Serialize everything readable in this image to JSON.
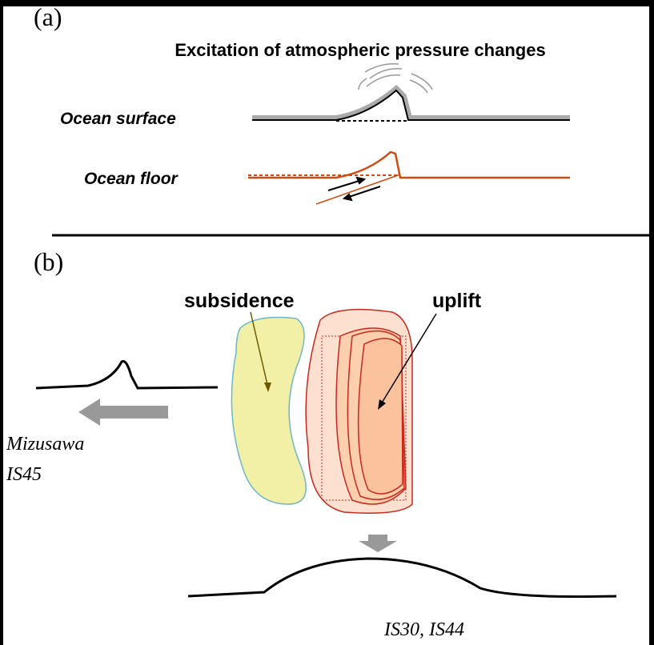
{
  "panel_a": {
    "label": "(a)",
    "title": "Excitation of atmospheric pressure changes",
    "surface_label": "Ocean surface",
    "floor_label": "Ocean floor"
  },
  "panel_b": {
    "label": "(b)",
    "subsidence_label": "subsidence",
    "uplift_label": "uplift",
    "station_left": "Mizusawa",
    "station_left_id": "IS45",
    "station_bottom": "IS30, IS44"
  }
}
